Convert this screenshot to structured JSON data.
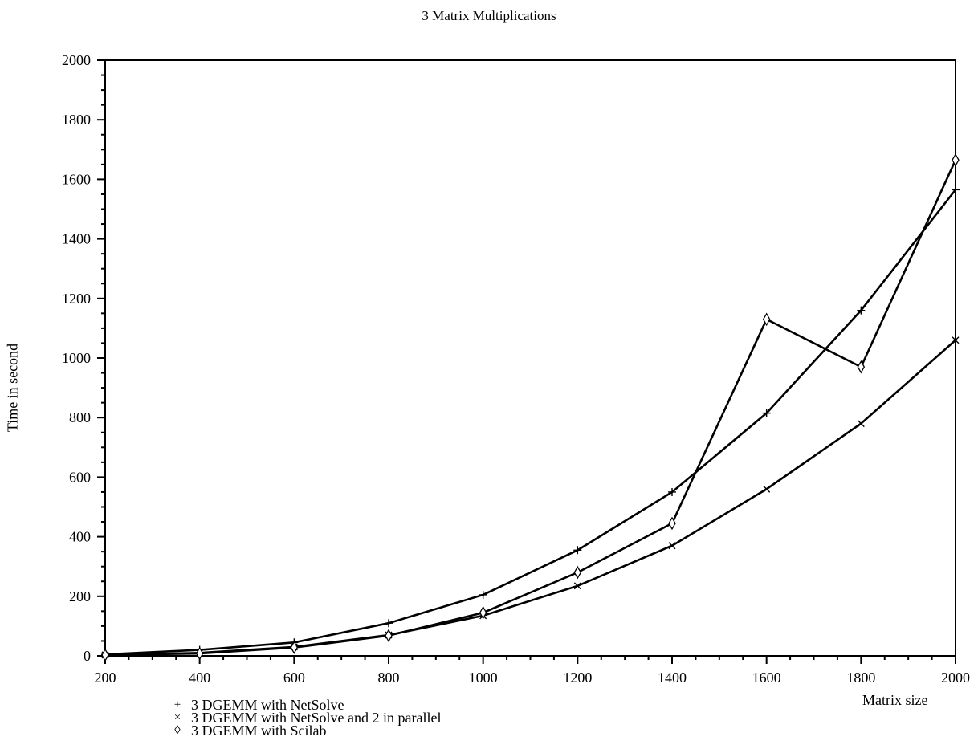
{
  "chart_data": {
    "type": "line",
    "title": "3 Matrix Multiplications",
    "xlabel": "Matrix size",
    "ylabel": "Time in second",
    "xlim": [
      200,
      2000
    ],
    "ylim": [
      0,
      2000
    ],
    "x_ticks": [
      "200",
      "400",
      "600",
      "800",
      "1000",
      "1200",
      "1400",
      "1600",
      "1800",
      "2000"
    ],
    "y_ticks": [
      "0",
      "200",
      "400",
      "600",
      "800",
      "1000",
      "1200",
      "1400",
      "1600",
      "1800",
      "2000"
    ],
    "grid": false,
    "legend_position": "bottom-left",
    "x": [
      200,
      400,
      600,
      800,
      1000,
      1200,
      1400,
      1600,
      1800,
      2000
    ],
    "series": [
      {
        "name": "3 DGEMM with NetSolve",
        "marker": "+",
        "values": [
          5,
          20,
          45,
          110,
          205,
          355,
          550,
          815,
          1160,
          1565
        ]
      },
      {
        "name": "3 DGEMM with NetSolve and 2 in parallel",
        "marker": "×",
        "values": [
          3,
          10,
          30,
          70,
          135,
          235,
          370,
          560,
          780,
          1060
        ]
      },
      {
        "name": "3 DGEMM with Scilab",
        "marker": "◊",
        "values": [
          3,
          8,
          28,
          68,
          145,
          280,
          445,
          1130,
          970,
          1665
        ]
      }
    ]
  }
}
